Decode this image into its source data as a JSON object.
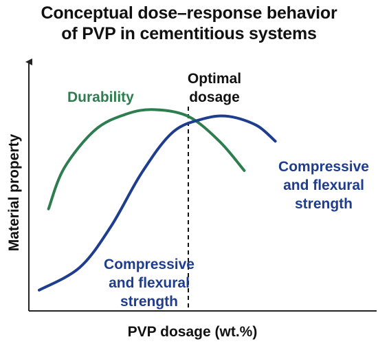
{
  "title_lines": [
    "Conceptual dose–response behavior",
    "of PVP in cementitious systems"
  ],
  "colors": {
    "durability": "#2e7d4f",
    "strength": "#1f3d8f",
    "axis": "#222222",
    "text": "#111111"
  },
  "chart_data": {
    "type": "line",
    "title": "Conceptual dose–response behavior of PVP in cementitious systems",
    "xlabel": "PVP dosage (wt.%)",
    "ylabel": "Material property",
    "xlim": [
      0,
      10
    ],
    "ylim": [
      0,
      10
    ],
    "grid": false,
    "series": [
      {
        "name": "Durability",
        "color": "#2e7d4f",
        "x": [
          0.5,
          1.0,
          2.0,
          3.0,
          3.9,
          5.0,
          6.0,
          6.8
        ],
        "y": [
          4.4,
          6.2,
          7.9,
          8.6,
          8.8,
          8.5,
          7.4,
          6.1
        ]
      },
      {
        "name": "Compressive and flexural strength",
        "color": "#1f3d8f",
        "x": [
          0.2,
          1.5,
          2.5,
          3.5,
          4.5,
          5.5,
          6.3,
          7.2,
          7.8
        ],
        "y": [
          0.8,
          1.8,
          3.6,
          6.0,
          7.8,
          8.4,
          8.5,
          8.1,
          7.4
        ]
      }
    ],
    "annotations": {
      "optimal_line_x": 5.0,
      "optimal_label": [
        "Optimal",
        "dosage"
      ],
      "durability_label": "Durability",
      "strength_label_right": [
        "Compressive",
        "and flexural",
        "strength"
      ],
      "strength_label_bottom": [
        "Compressive",
        "and flexural",
        "strength"
      ]
    }
  }
}
